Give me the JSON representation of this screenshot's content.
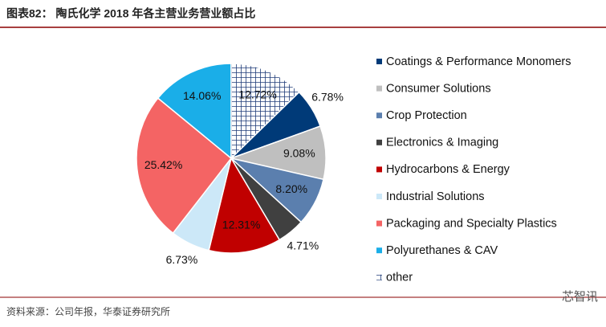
{
  "chart_data": {
    "type": "pie",
    "title": "图表82：  陶氏化学 2018 年各主营业务营业额占比",
    "source": "资料来源：公司年报，华泰证券研究所",
    "watermark": "芯智讯",
    "categories": [
      "Coatings & Performance Monomers",
      "Consumer Solutions",
      "Crop Protection",
      "Electronics & Imaging",
      "Hydrocarbons & Energy",
      "Industrial Solutions",
      "Packaging and Specialty Plastics",
      "Polyurethanes & CAV",
      "other"
    ],
    "values": [
      6.78,
      9.08,
      8.2,
      4.71,
      12.31,
      6.73,
      25.42,
      14.06,
      12.72
    ],
    "value_labels": [
      "6.78%",
      "9.08%",
      "8.20%",
      "4.71%",
      "12.31%",
      "6.73%",
      "25.42%",
      "14.06%",
      "12.72%"
    ],
    "colors": [
      "#003a78",
      "#bfbfbf",
      "#5b7fae",
      "#404040",
      "#c00000",
      "#cce8f8",
      "#f46464",
      "#1aaee8",
      "#1f3c78"
    ],
    "hatched": [
      false,
      false,
      false,
      false,
      false,
      false,
      false,
      false,
      true
    ],
    "legend": "right"
  }
}
